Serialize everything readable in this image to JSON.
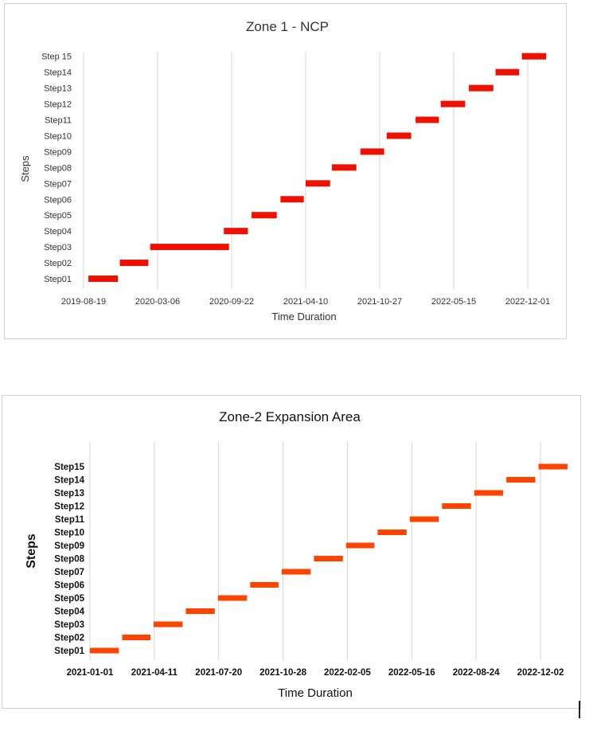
{
  "chart_data": [
    {
      "type": "bar",
      "orientation": "horizontal-gantt",
      "title": "Zone 1 - NCP",
      "xlabel": "Time Duration",
      "ylabel": "Steps",
      "x_ticks": [
        "2019-08-19",
        "2020-03-06",
        "2020-09-22",
        "2021-04-10",
        "2021-10-27",
        "2022-05-15",
        "2022-12-01"
      ],
      "x_range": [
        "2019-08-19",
        "2022-12-01"
      ],
      "grid": "vertical",
      "legend": "none",
      "bar_color": "#ee1100",
      "categories": [
        "Step01",
        "Step02",
        "Step03",
        "Step04",
        "Step05",
        "Step06",
        "Step07",
        "Step08",
        "Step09",
        "Step10",
        "Step11",
        "Step12",
        "Step13",
        "Step14",
        "Step15"
      ],
      "category_labels": [
        "Step01",
        "Step02",
        "Step03",
        "Step04",
        "Step05",
        "Step06",
        "Step07",
        "Step08",
        "Step09",
        "Step10",
        "Step11",
        "Step12",
        "Step13",
        "Step14",
        "Step 15"
      ],
      "tasks": [
        {
          "step": "Step01",
          "start": "2019-09-01",
          "end": "2019-11-20"
        },
        {
          "step": "Step02",
          "start": "2019-11-25",
          "end": "2020-02-10"
        },
        {
          "step": "Step03",
          "start": "2020-02-15",
          "end": "2020-09-15"
        },
        {
          "step": "Step04",
          "start": "2020-09-01",
          "end": "2020-11-05"
        },
        {
          "step": "Step05",
          "start": "2020-11-15",
          "end": "2021-01-22"
        },
        {
          "step": "Step06",
          "start": "2021-02-01",
          "end": "2021-04-05"
        },
        {
          "step": "Step07",
          "start": "2021-04-10",
          "end": "2021-06-15"
        },
        {
          "step": "Step08",
          "start": "2021-06-20",
          "end": "2021-08-25"
        },
        {
          "step": "Step09",
          "start": "2021-09-05",
          "end": "2021-11-08"
        },
        {
          "step": "Step10",
          "start": "2021-11-15",
          "end": "2022-01-20"
        },
        {
          "step": "Step11",
          "start": "2022-02-01",
          "end": "2022-04-05"
        },
        {
          "step": "Step12",
          "start": "2022-04-10",
          "end": "2022-06-15"
        },
        {
          "step": "Step13",
          "start": "2022-06-25",
          "end": "2022-08-30"
        },
        {
          "step": "Step14",
          "start": "2022-09-05",
          "end": "2022-11-08"
        },
        {
          "step": "Step15",
          "start": "2022-11-15",
          "end": "2023-01-20"
        }
      ]
    },
    {
      "type": "bar",
      "orientation": "horizontal-gantt",
      "title": "Zone-2 Expansion Area",
      "xlabel": "Time Duration",
      "ylabel": "Steps",
      "x_ticks": [
        "2021-01-01",
        "2021-04-11",
        "2021-07-20",
        "2021-10-28",
        "2022-02-05",
        "2022-05-16",
        "2022-08-24",
        "2022-12-02"
      ],
      "x_range": [
        "2021-01-01",
        "2022-12-02"
      ],
      "grid": "vertical",
      "legend": "none",
      "bar_color": "#ff4400",
      "categories": [
        "Step01",
        "Step02",
        "Step03",
        "Step04",
        "Step05",
        "Step06",
        "Step07",
        "Step08",
        "Step09",
        "Step10",
        "Step11",
        "Step12",
        "Step13",
        "Step14",
        "Step15"
      ],
      "category_labels": [
        "Step01",
        "Step02",
        "Step03",
        "Step04",
        "Step05",
        "Step06",
        "Step07",
        "Step08",
        "Step09",
        "Step10",
        "Step11",
        "Step12",
        "Step13",
        "Step14",
        "Step15"
      ],
      "tasks": [
        {
          "step": "Step01",
          "start": "2021-01-01",
          "end": "2021-02-15"
        },
        {
          "step": "Step02",
          "start": "2021-02-20",
          "end": "2021-04-05"
        },
        {
          "step": "Step03",
          "start": "2021-04-10",
          "end": "2021-05-25"
        },
        {
          "step": "Step04",
          "start": "2021-05-30",
          "end": "2021-07-14"
        },
        {
          "step": "Step05",
          "start": "2021-07-19",
          "end": "2021-09-02"
        },
        {
          "step": "Step06",
          "start": "2021-09-07",
          "end": "2021-10-21"
        },
        {
          "step": "Step07",
          "start": "2021-10-26",
          "end": "2021-12-10"
        },
        {
          "step": "Step08",
          "start": "2021-12-15",
          "end": "2022-01-29"
        },
        {
          "step": "Step09",
          "start": "2022-02-03",
          "end": "2022-03-19"
        },
        {
          "step": "Step10",
          "start": "2022-03-24",
          "end": "2022-05-08"
        },
        {
          "step": "Step11",
          "start": "2022-05-13",
          "end": "2022-06-27"
        },
        {
          "step": "Step12",
          "start": "2022-07-02",
          "end": "2022-08-16"
        },
        {
          "step": "Step13",
          "start": "2022-08-21",
          "end": "2022-10-05"
        },
        {
          "step": "Step14",
          "start": "2022-10-10",
          "end": "2022-11-24"
        },
        {
          "step": "Step15",
          "start": "2022-11-29",
          "end": "2023-01-13"
        }
      ]
    }
  ]
}
